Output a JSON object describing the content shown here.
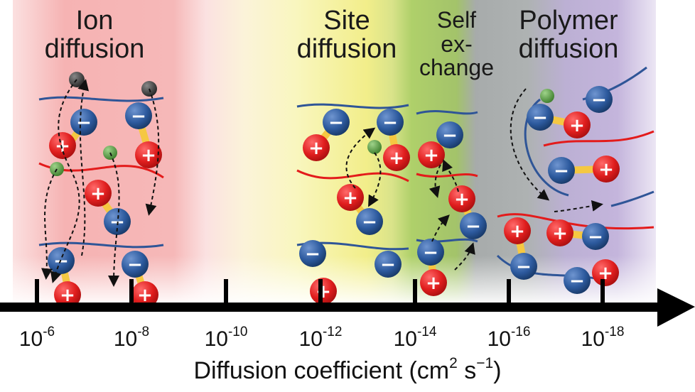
{
  "regions": [
    {
      "key": "ion",
      "lines": [
        "Ion",
        "diffusion"
      ]
    },
    {
      "key": "site",
      "lines": [
        "Site",
        "diffusion"
      ]
    },
    {
      "key": "self",
      "lines": [
        "Self",
        "ex-",
        "change"
      ]
    },
    {
      "key": "polymer",
      "lines": [
        "Polymer",
        "diffusion"
      ]
    }
  ],
  "axis": {
    "base": "10",
    "exponents": [
      "-6",
      "-8",
      "-10",
      "-12",
      "-14",
      "-16",
      "-18"
    ],
    "title_main": "Diffusion coefficient (cm",
    "title_sup1": "2",
    "title_mid": " s",
    "title_sup2": "−1",
    "title_end": ")"
  },
  "ion_charges": {
    "cation": "+",
    "anion": "−"
  },
  "colors": {
    "ion_band": "#f4a6a6",
    "site_band": "#f3f08a",
    "self_band": "#a7cf63",
    "polymer_band_left": "#9fa3a3",
    "polymer_band_right": "#b9a8d6",
    "cation": "#e01e1e",
    "anion": "#2d5a9e",
    "counter_ion": "#4e9a3c",
    "dark_ion": "#333333",
    "chain_blue": "#2f5597",
    "chain_red": "#e31b1b",
    "link_yellow": "#f5c842",
    "axis": "#000000"
  }
}
